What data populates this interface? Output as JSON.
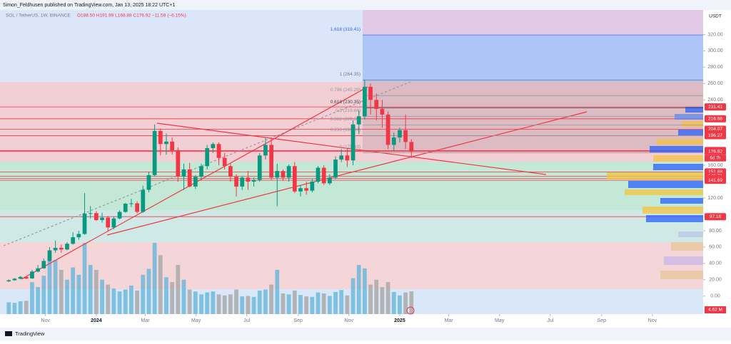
{
  "header": {
    "publisher": "Simon_Feldhusen published on TradingView.com, Jan 13, 2025 18:22 UTC+1",
    "symbol": "SOL / TetherUS, 1W, BINANCE",
    "ohlc": "O188.50 H191.99 L168.88 C176.92 −11.59 (−6.15%)",
    "currency": "USDT",
    "countdown": "6d 7h",
    "footer": "TradingView"
  },
  "chart_data": {
    "type": "candlestick",
    "up_color": "#089981",
    "down_color": "#f23645",
    "volume_up_color": "#6cb8da",
    "volume_down_color": "#a9a9a9",
    "open": [
      18.0,
      19.4,
      21.3,
      23.5,
      21.6,
      30.0,
      34.0,
      43.0,
      56.0,
      59.0,
      57.0,
      64.0,
      72.0,
      76.0,
      101.0,
      101.5,
      93.0,
      96.0,
      84.0,
      95.0,
      103.0,
      113.0,
      113.5,
      103.0,
      130.0,
      148.0,
      202.0,
      186.0,
      189.0,
      178.0,
      146.0,
      155.0,
      134.0,
      146.0,
      159.0,
      181.0,
      186.0,
      169.0,
      159.0,
      146.0,
      134.0,
      145.0,
      140.0,
      142.0,
      172.0,
      185.0,
      145.0,
      153.0,
      145.0,
      159.0,
      128.0,
      132.0,
      129.0,
      140.0,
      157.0,
      138.0,
      145.0,
      167.0,
      172.0,
      166.0,
      210.0,
      220.0,
      256.0,
      240.0,
      229.0,
      222.0,
      185.0,
      194.0,
      203.0,
      188.5
    ],
    "high": [
      20.5,
      22.0,
      24.5,
      24.0,
      32.0,
      38.0,
      46.0,
      60.0,
      68.0,
      63.0,
      66.0,
      78.0,
      80.0,
      126.0,
      110.0,
      104.0,
      102.0,
      98.0,
      97.0,
      105.0,
      114.0,
      119.0,
      116.0,
      135.0,
      152.0,
      210.0,
      205.0,
      199.0,
      194.0,
      182.0,
      162.0,
      163.0,
      148.0,
      162.0,
      185.0,
      188.0,
      188.0,
      175.0,
      162.0,
      149.0,
      147.0,
      153.0,
      145.0,
      175.0,
      194.0,
      193.0,
      162.0,
      155.0,
      161.0,
      164.0,
      136.0,
      140.0,
      143.0,
      159.0,
      160.0,
      149.0,
      171.0,
      180.0,
      181.0,
      215.0,
      227.0,
      264.35,
      260.0,
      248.0,
      240.0,
      226.0,
      200.0,
      206.0,
      222.0,
      191.99
    ],
    "low": [
      17.4,
      18.8,
      20.8,
      20.6,
      21.2,
      29.0,
      33.5,
      42.0,
      53.0,
      53.0,
      56.0,
      63.0,
      69.0,
      75.0,
      95.0,
      92.0,
      90.0,
      80.0,
      82.0,
      94.0,
      102.0,
      109.0,
      101.0,
      102.0,
      127.0,
      146.0,
      172.0,
      173.0,
      173.0,
      140.0,
      130.0,
      133.0,
      131.0,
      142.0,
      155.0,
      175.0,
      160.0,
      155.0,
      140.0,
      122.0,
      130.0,
      130.0,
      134.0,
      140.0,
      167.0,
      142.0,
      110.0,
      141.0,
      140.0,
      126.0,
      122.0,
      124.0,
      127.0,
      138.0,
      136.0,
      136.0,
      143.0,
      164.0,
      158.0,
      160.0,
      198.0,
      216.0,
      222.0,
      215.0,
      206.0,
      180.0,
      178.0,
      188.0,
      180.0,
      168.88
    ],
    "close": [
      19.4,
      21.3,
      23.5,
      21.6,
      30.0,
      34.0,
      43.0,
      56.0,
      59.0,
      57.0,
      64.0,
      72.0,
      76.0,
      101.0,
      101.5,
      93.0,
      96.0,
      84.0,
      95.0,
      103.0,
      113.0,
      113.5,
      103.0,
      130.0,
      148.0,
      202.0,
      186.0,
      189.0,
      178.0,
      146.0,
      155.0,
      134.0,
      146.0,
      159.0,
      181.0,
      186.0,
      169.0,
      159.0,
      146.0,
      134.0,
      145.0,
      140.0,
      142.0,
      172.0,
      185.0,
      145.0,
      153.0,
      145.0,
      159.0,
      128.0,
      132.0,
      129.0,
      140.0,
      157.0,
      138.0,
      145.0,
      167.0,
      172.0,
      166.0,
      210.0,
      220.0,
      256.0,
      240.0,
      229.0,
      222.0,
      185.0,
      194.0,
      203.0,
      188.5,
      176.92
    ],
    "volume": [
      2.4,
      2.3,
      2.6,
      2.7,
      6.5,
      5.5,
      7.8,
      12.0,
      11.0,
      9.0,
      7.0,
      9.5,
      8.0,
      14.5,
      10.0,
      9.0,
      7.0,
      6.0,
      5.2,
      4.6,
      5.0,
      5.8,
      4.8,
      8.0,
      9.2,
      14.5,
      12.0,
      7.5,
      6.5,
      10.0,
      7.0,
      5.0,
      4.6,
      4.0,
      4.4,
      4.6,
      4.0,
      3.8,
      4.0,
      5.0,
      3.6,
      3.7,
      3.5,
      4.8,
      5.0,
      6.0,
      9.0,
      4.2,
      4.0,
      4.8,
      3.9,
      3.6,
      3.5,
      4.4,
      4.2,
      3.7,
      4.5,
      4.9,
      3.8,
      7.3,
      10.0,
      9.3,
      6.0,
      7.0,
      5.5,
      6.5,
      4.5,
      3.8,
      4.4,
      4.62
    ],
    "volume_badge": "4.62 M",
    "levels": [
      231.41,
      216.88,
      204.07,
      196.27,
      178.01,
      176.92,
      151.88,
      146.71,
      143.72,
      141.69,
      97.18
    ],
    "level_color": "#f23645",
    "fib": [
      {
        "label": "1.618 (319.41)",
        "value": 319.41,
        "color": "#2962ff"
      },
      {
        "label": "1 (264.35)",
        "value": 264.35,
        "color": "#787b86"
      },
      {
        "label": "0.786 (245.29)",
        "value": 245.29,
        "color": "#9598a1"
      },
      {
        "label": "0.618 (230.35)",
        "value": 230.35,
        "color": "#434651"
      },
      {
        "label": "0.5 (219.84)",
        "value": 219.84,
        "color": "#9598a1"
      },
      {
        "label": "0.382 (209.33)",
        "value": 209.33,
        "color": "#9598a1"
      },
      {
        "label": "0.236 (196.34)",
        "value": 196.34,
        "color": "#9598a1"
      },
      {
        "label": "0 (175.33)",
        "value": 175.33,
        "color": "#9598a1"
      }
    ],
    "xlim": [
      -1.5,
      119
    ],
    "xticks": [
      {
        "value": 6.3,
        "label": "Nov"
      },
      {
        "value": 15.0,
        "label": "2024"
      },
      {
        "value": 23.4,
        "label": "Mar"
      },
      {
        "value": 32.1,
        "label": "May"
      },
      {
        "value": 40.8,
        "label": "Jul"
      },
      {
        "value": 49.6,
        "label": "Sep"
      },
      {
        "value": 58.3,
        "label": "Nov"
      },
      {
        "value": 67.0,
        "label": "2025"
      },
      {
        "value": 75.4,
        "label": "Mar"
      },
      {
        "value": 84.1,
        "label": "May"
      },
      {
        "value": 92.8,
        "label": "Jul"
      },
      {
        "value": 101.6,
        "label": "Sep"
      },
      {
        "value": 110.3,
        "label": "Nov"
      }
    ],
    "ylim": [
      -22,
      350
    ],
    "yticks": [
      {
        "value": 320,
        "label": "320.00"
      },
      {
        "value": 300,
        "label": "300.00"
      },
      {
        "value": 280,
        "label": "280.00"
      },
      {
        "value": 260,
        "label": "260.00"
      },
      {
        "value": 240,
        "label": "240.00"
      },
      {
        "value": 160,
        "label": "160.00"
      },
      {
        "value": 120,
        "label": "120.00"
      },
      {
        "value": 80,
        "label": "80.00"
      },
      {
        "value": 60,
        "label": "60.00"
      },
      {
        "value": 40,
        "label": "40.00"
      },
      {
        "value": 20,
        "label": "20.00"
      },
      {
        "value": 0,
        "label": "0.00"
      }
    ]
  }
}
